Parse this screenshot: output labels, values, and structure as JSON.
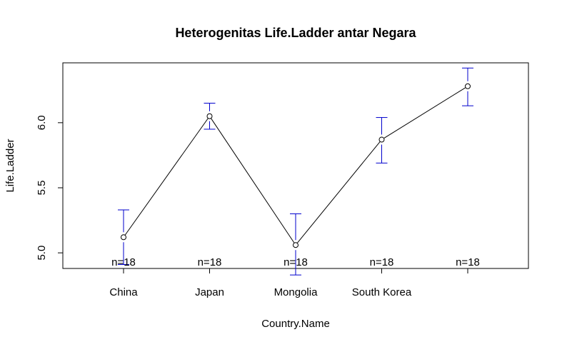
{
  "chart_data": {
    "type": "line",
    "title": "Heterogenitas Life.Ladder antar Negara",
    "xlabel": "Country.Name",
    "ylabel": "Life.Ladder",
    "categories": [
      "China",
      "Japan",
      "Mongolia",
      "South Korea",
      ""
    ],
    "values": [
      5.12,
      6.05,
      5.06,
      5.87,
      6.28
    ],
    "error_bars": [
      {
        "lower": 4.91,
        "upper": 5.33
      },
      {
        "lower": 5.95,
        "upper": 6.15
      },
      {
        "lower": 4.83,
        "upper": 5.3
      },
      {
        "lower": 5.69,
        "upper": 6.04
      },
      {
        "lower": 6.13,
        "upper": 6.42
      }
    ],
    "n_labels": [
      "n=18",
      "n=18",
      "n=18",
      "n=18",
      "n=18"
    ],
    "yticks": [
      5.0,
      5.5,
      6.0
    ],
    "ytick_labels": [
      "5.0",
      "5.5",
      "6.0"
    ],
    "ylim": [
      4.88,
      6.46
    ],
    "grid": false,
    "colors": {
      "line": "#000000",
      "error_bar": "#0000cd"
    }
  }
}
